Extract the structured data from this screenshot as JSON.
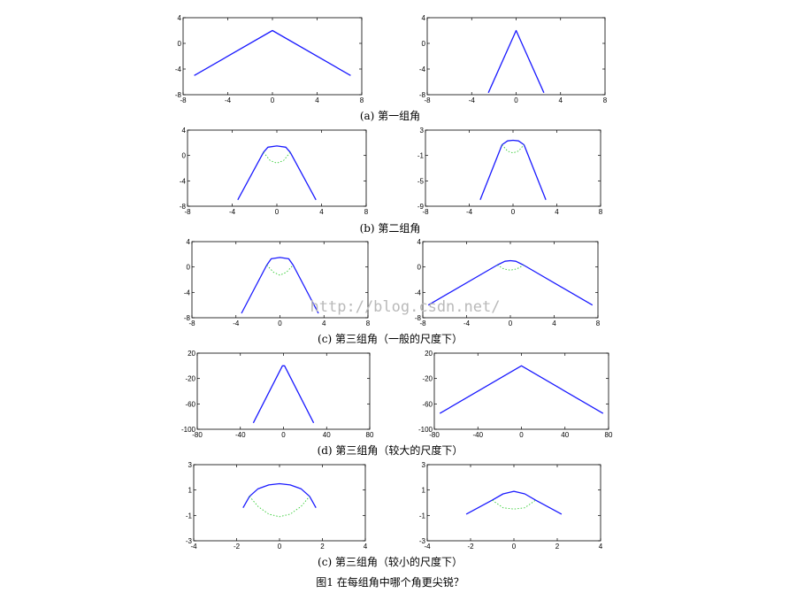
{
  "figure_caption": "图1 在每组角中哪个角更尖锐？",
  "watermark": "http://blog.csdn.net/",
  "colors": {
    "primary_line": "#1a1aff",
    "secondary_line": "#33cc33",
    "axes": "#000000"
  },
  "panel_captions": [
    "(a) 第一组角",
    "(b) 第二组角",
    "(c) 第三组角（一般的尺度下）",
    "(d) 第三组角（较大的尺度下）",
    "(c) 第三组角（较小的尺度下）"
  ],
  "chart_data": [
    {
      "type": "line",
      "panel": "a-left",
      "xlim": [
        -8,
        8
      ],
      "ylim": [
        -8,
        4
      ],
      "xticks": [
        -8,
        -4,
        0,
        4,
        8
      ],
      "yticks": [
        -8,
        -4,
        0,
        4
      ],
      "series": [
        {
          "style": "solid",
          "color": "#1a1aff",
          "x": [
            -7,
            0,
            7
          ],
          "y": [
            -5,
            2,
            -5
          ]
        }
      ]
    },
    {
      "type": "line",
      "panel": "a-right",
      "xlim": [
        -8,
        8
      ],
      "ylim": [
        -8,
        4
      ],
      "xticks": [
        -8,
        -4,
        0,
        4,
        8
      ],
      "yticks": [
        -8,
        -4,
        0,
        4
      ],
      "series": [
        {
          "style": "solid",
          "color": "#1a1aff",
          "x": [
            -2.5,
            0,
            2.5
          ],
          "y": [
            -7.7,
            2,
            -7.7
          ]
        }
      ]
    },
    {
      "type": "line",
      "panel": "b-left",
      "xlim": [
        -8,
        8
      ],
      "ylim": [
        -8,
        4
      ],
      "xticks": [
        -8,
        -4,
        0,
        4,
        8
      ],
      "yticks": [
        -8,
        -4,
        0,
        4
      ],
      "series": [
        {
          "style": "solid",
          "color": "#1a1aff",
          "x": [
            -3.5,
            -1.2,
            -0.8,
            0,
            0.8,
            1.2,
            3.5
          ],
          "y": [
            -7,
            0.5,
            1.3,
            1.5,
            1.3,
            0.5,
            -7
          ]
        },
        {
          "style": "dotted",
          "color": "#33cc33",
          "x": [
            -1.2,
            -0.6,
            0,
            0.6,
            1.2
          ],
          "y": [
            0.5,
            -0.8,
            -1.2,
            -0.8,
            0.5
          ]
        }
      ]
    },
    {
      "type": "line",
      "panel": "b-right",
      "xlim": [
        -8,
        8
      ],
      "ylim": [
        -9,
        3
      ],
      "xticks": [
        -8,
        -4,
        0,
        4,
        8
      ],
      "yticks": [
        -9,
        -5,
        -1,
        3
      ],
      "series": [
        {
          "style": "solid",
          "color": "#1a1aff",
          "x": [
            -3,
            -1,
            -0.5,
            0,
            0.5,
            1,
            3
          ],
          "y": [
            -8,
            0.7,
            1.3,
            1.4,
            1.3,
            0.7,
            -8
          ]
        },
        {
          "style": "dotted",
          "color": "#33cc33",
          "x": [
            -1,
            -0.5,
            0,
            0.5,
            1
          ],
          "y": [
            0.7,
            -0.3,
            -0.6,
            -0.3,
            0.7
          ]
        }
      ]
    },
    {
      "type": "line",
      "panel": "c-left",
      "xlim": [
        -8,
        8
      ],
      "ylim": [
        -8,
        4
      ],
      "xticks": [
        -8,
        -4,
        0,
        4,
        8
      ],
      "yticks": [
        -8,
        -4,
        0,
        4
      ],
      "series": [
        {
          "style": "solid",
          "color": "#1a1aff",
          "x": [
            -3.5,
            -1.2,
            -0.8,
            0,
            0.8,
            1.2,
            3.5
          ],
          "y": [
            -7.3,
            0.3,
            1.3,
            1.5,
            1.3,
            0.3,
            -7.3
          ]
        },
        {
          "style": "dotted",
          "color": "#33cc33",
          "x": [
            -1.2,
            -0.6,
            0,
            0.6,
            1.2
          ],
          "y": [
            0.3,
            -0.8,
            -1.3,
            -0.8,
            0.3
          ]
        }
      ]
    },
    {
      "type": "line",
      "panel": "c-right",
      "xlim": [
        -8,
        8
      ],
      "ylim": [
        -8,
        4
      ],
      "xticks": [
        -8,
        -4,
        0,
        4,
        8
      ],
      "yticks": [
        -8,
        -4,
        0,
        4
      ],
      "series": [
        {
          "style": "solid",
          "color": "#1a1aff",
          "x": [
            -7.5,
            -1.2,
            -0.5,
            0,
            0.5,
            1.2,
            7.5
          ],
          "y": [
            -6,
            0.3,
            0.9,
            1,
            0.9,
            0.3,
            -6
          ]
        },
        {
          "style": "dotted",
          "color": "#33cc33",
          "x": [
            -1.2,
            -0.6,
            0,
            0.6,
            1.2
          ],
          "y": [
            0.3,
            -0.3,
            -0.5,
            -0.3,
            0.3
          ]
        }
      ]
    },
    {
      "type": "line",
      "panel": "d-left",
      "xlim": [
        -80,
        80
      ],
      "ylim": [
        -100,
        20
      ],
      "xticks": [
        -80,
        -40,
        0,
        40,
        80
      ],
      "yticks": [
        -100,
        -60,
        -20,
        20
      ],
      "series": [
        {
          "style": "solid",
          "color": "#1a1aff",
          "x": [
            -28,
            -1,
            1,
            28
          ],
          "y": [
            -90,
            0,
            0,
            -90
          ]
        }
      ]
    },
    {
      "type": "line",
      "panel": "d-right",
      "xlim": [
        -80,
        80
      ],
      "ylim": [
        -100,
        20
      ],
      "xticks": [
        -80,
        -40,
        0,
        40,
        80
      ],
      "yticks": [
        -100,
        -60,
        -20,
        20
      ],
      "series": [
        {
          "style": "solid",
          "color": "#1a1aff",
          "x": [
            -75,
            0,
            75
          ],
          "y": [
            -75,
            0,
            -75
          ]
        }
      ]
    },
    {
      "type": "line",
      "panel": "e-left",
      "xlim": [
        -4,
        4
      ],
      "ylim": [
        -3,
        3
      ],
      "xticks": [
        -4,
        -2,
        0,
        2,
        4
      ],
      "yticks": [
        -3,
        -1,
        1,
        3
      ],
      "series": [
        {
          "style": "solid",
          "color": "#1a1aff",
          "x": [
            -1.7,
            -1.4,
            -1,
            -0.5,
            0,
            0.5,
            1,
            1.4,
            1.7
          ],
          "y": [
            -0.4,
            0.5,
            1.1,
            1.4,
            1.5,
            1.4,
            1.1,
            0.5,
            -0.4
          ]
        },
        {
          "style": "dotted",
          "color": "#33cc33",
          "x": [
            -1.4,
            -1,
            -0.5,
            0,
            0.5,
            1,
            1.4
          ],
          "y": [
            0.5,
            -0.3,
            -0.9,
            -1.1,
            -0.9,
            -0.3,
            0.5
          ]
        }
      ]
    },
    {
      "type": "line",
      "panel": "e-right",
      "xlim": [
        -4,
        4
      ],
      "ylim": [
        -3,
        3
      ],
      "xticks": [
        -4,
        -2,
        0,
        2,
        4
      ],
      "yticks": [
        -3,
        -1,
        1,
        3
      ],
      "series": [
        {
          "style": "solid",
          "color": "#1a1aff",
          "x": [
            -2.2,
            -1,
            -0.5,
            0,
            0.5,
            1,
            2.2
          ],
          "y": [
            -0.9,
            0.2,
            0.7,
            0.9,
            0.7,
            0.2,
            -0.9
          ]
        },
        {
          "style": "dotted",
          "color": "#33cc33",
          "x": [
            -1,
            -0.5,
            0,
            0.5,
            1
          ],
          "y": [
            0.2,
            -0.4,
            -0.5,
            -0.4,
            0.2
          ]
        }
      ]
    }
  ]
}
